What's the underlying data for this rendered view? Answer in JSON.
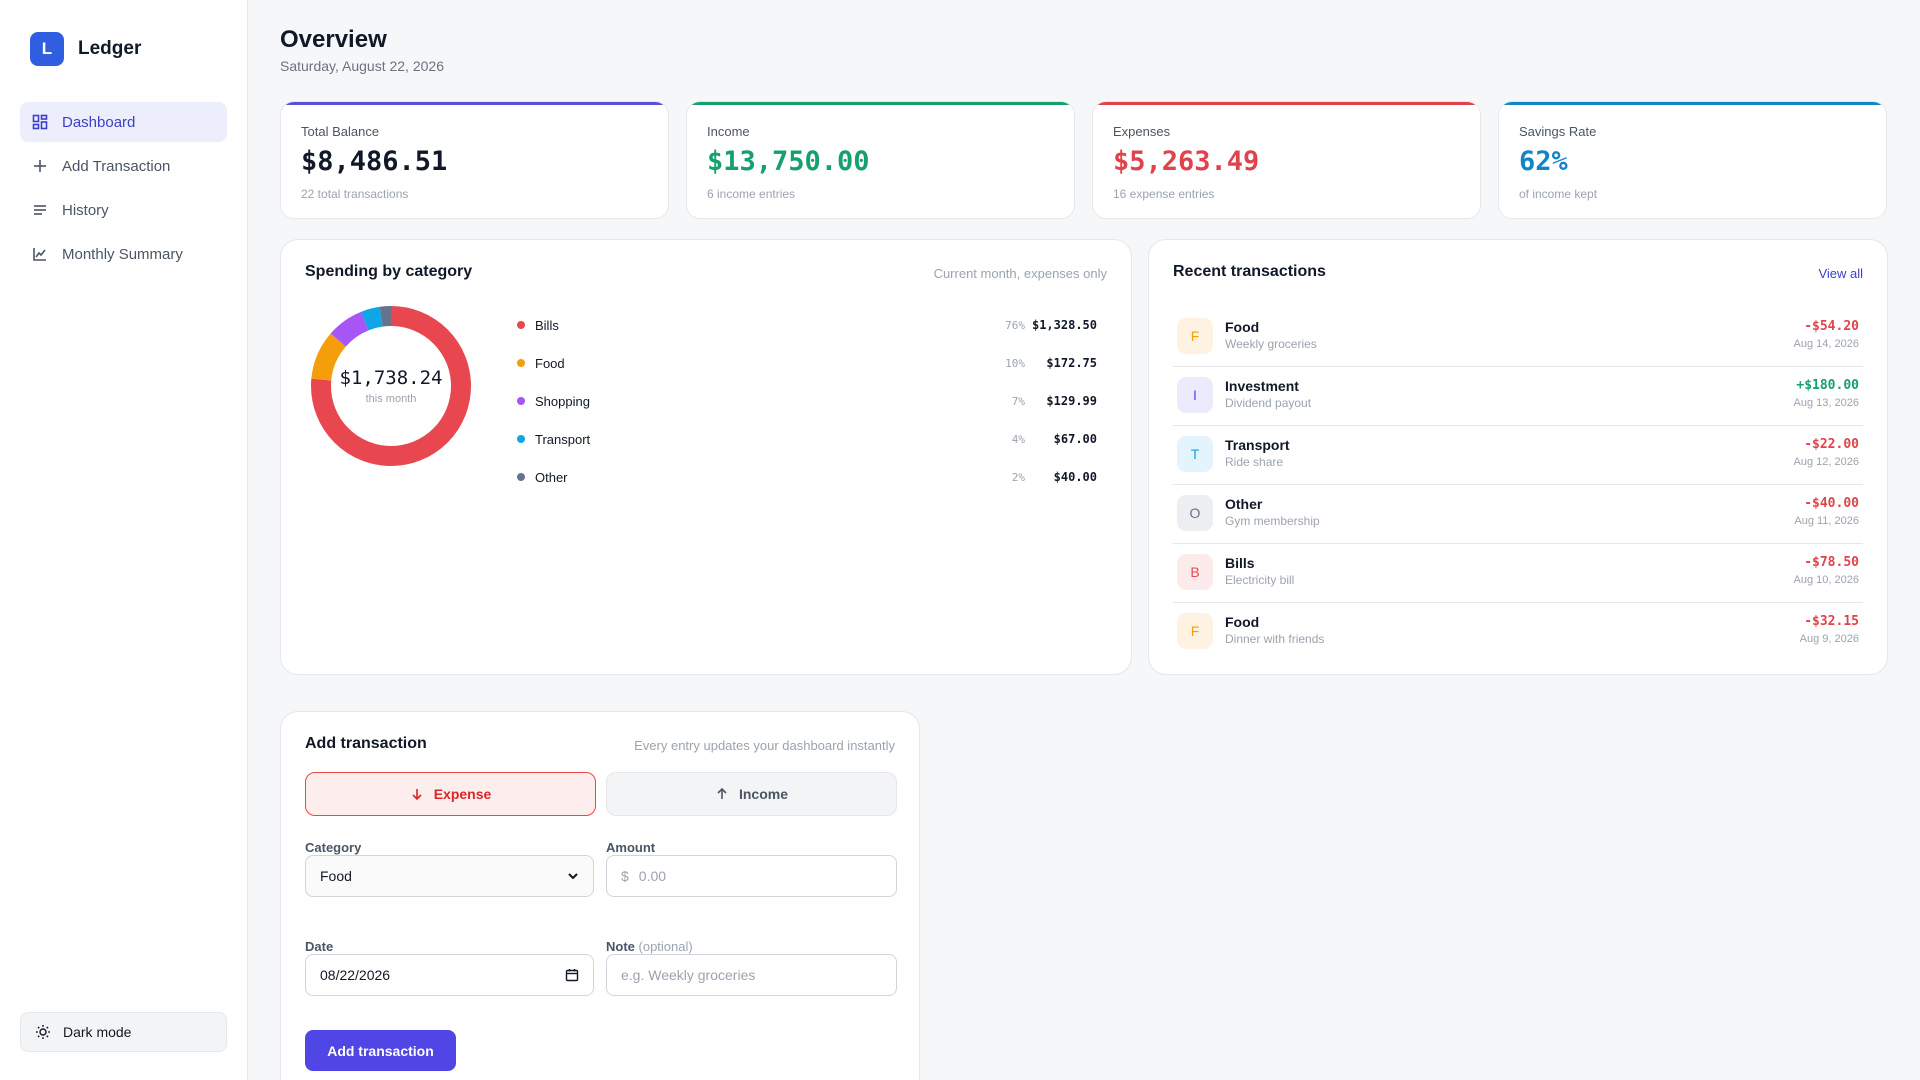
{
  "brand": {
    "logo_letter": "L",
    "name": "Ledger"
  },
  "sidebar": {
    "items": [
      {
        "label": "Dashboard",
        "icon": "dashboard-icon",
        "active": true
      },
      {
        "label": "Add Transaction",
        "icon": "plus-icon"
      },
      {
        "label": "History",
        "icon": "list-icon"
      },
      {
        "label": "Monthly Summary",
        "icon": "chart-line-icon"
      }
    ],
    "dark_mode_label": "Dark mode"
  },
  "header": {
    "title": "Overview",
    "date": "Saturday, August 22, 2026"
  },
  "stats": [
    {
      "label": "Total Balance",
      "value": "$8,486.51",
      "sub": "22 total transactions",
      "color": "#111827",
      "accent": "#5b4fd6"
    },
    {
      "label": "Income",
      "value": "$13,750.00",
      "sub": "6 income entries",
      "color": "#16a06b",
      "accent": "#16a06b"
    },
    {
      "label": "Expenses",
      "value": "$5,263.49",
      "sub": "16 expense entries",
      "color": "#e0434b",
      "accent": "#e0434b"
    },
    {
      "label": "Savings Rate",
      "value": "62%",
      "sub": "of income kept",
      "color": "#1185c6",
      "accent": "#1185c6"
    }
  ],
  "spending": {
    "title": "Spending by category",
    "hint": "Current month, expenses only",
    "total": "$1,738.24",
    "total_label": "this month",
    "categories": [
      {
        "name": "Bills",
        "pct": "76%",
        "amount": "$1,328.50",
        "value": 1328.5,
        "color": "#e8474f"
      },
      {
        "name": "Food",
        "pct": "10%",
        "amount": "$172.75",
        "value": 172.75,
        "color": "#f59e0b"
      },
      {
        "name": "Shopping",
        "pct": "7%",
        "amount": "$129.99",
        "value": 129.99,
        "color": "#a855f7"
      },
      {
        "name": "Transport",
        "pct": "4%",
        "amount": "$67.00",
        "value": 67.0,
        "color": "#0ea5e9"
      },
      {
        "name": "Other",
        "pct": "2%",
        "amount": "$40.00",
        "value": 40.0,
        "color": "#64748b"
      }
    ]
  },
  "recent": {
    "title": "Recent transactions",
    "view_all": "View all",
    "items": [
      {
        "letter": "F",
        "category": "Food",
        "note": "Weekly groceries",
        "amount": "-$54.20",
        "date": "Aug 14, 2026",
        "type": "expense",
        "bg": "#fef3e2",
        "fg": "#f59e0b"
      },
      {
        "letter": "I",
        "category": "Investment",
        "note": "Dividend payout",
        "amount": "+$180.00",
        "date": "Aug 13, 2026",
        "type": "income",
        "bg": "#ecebfb",
        "fg": "#4f46e5"
      },
      {
        "letter": "T",
        "category": "Transport",
        "note": "Ride share",
        "amount": "-$22.00",
        "date": "Aug 12, 2026",
        "type": "expense",
        "bg": "#e3f4fc",
        "fg": "#0ea5e9"
      },
      {
        "letter": "O",
        "category": "Other",
        "note": "Gym membership",
        "amount": "-$40.00",
        "date": "Aug 11, 2026",
        "type": "expense",
        "bg": "#eceef1",
        "fg": "#64748b"
      },
      {
        "letter": "B",
        "category": "Bills",
        "note": "Electricity bill",
        "amount": "-$78.50",
        "date": "Aug 10, 2026",
        "type": "expense",
        "bg": "#fdebec",
        "fg": "#e8474f"
      },
      {
        "letter": "F",
        "category": "Food",
        "note": "Dinner with friends",
        "amount": "-$32.15",
        "date": "Aug 9, 2026",
        "type": "expense",
        "bg": "#fef3e2",
        "fg": "#f59e0b"
      }
    ]
  },
  "form": {
    "title": "Add transaction",
    "hint": "Every entry updates your dashboard instantly",
    "expense_label": "Expense",
    "income_label": "Income",
    "category_label": "Category",
    "category_value": "Food",
    "amount_label": "Amount",
    "currency_symbol": "$",
    "amount_placeholder": "0.00",
    "date_label": "Date",
    "date_value": "08/22/2026",
    "note_label": "Note",
    "note_optional": "(optional)",
    "note_placeholder": "e.g. Weekly groceries",
    "submit_label": "Add transaction"
  }
}
